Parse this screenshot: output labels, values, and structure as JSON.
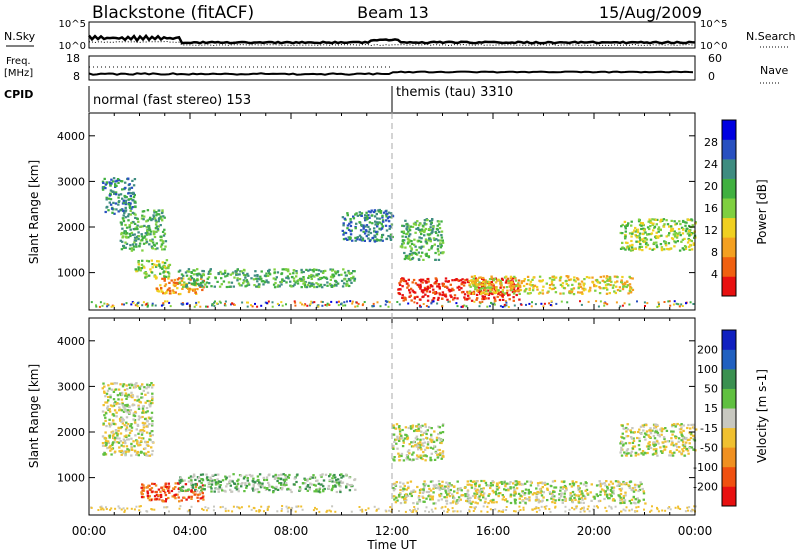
{
  "header": {
    "station": "Blackstone (fitACF)",
    "beam": "Beam 13",
    "date": "15/Aug/2009"
  },
  "top_panels": {
    "nsky_label": "N.Sky",
    "nsky_ticks": [
      "10^5",
      "10^0"
    ],
    "nsearch_label": "N.Search",
    "nsearch_ticks": [
      "10^5",
      "10^0"
    ],
    "freq_label": "Freq.",
    "freq_unit": "[MHz]",
    "freq_ticks": [
      "18",
      "8"
    ],
    "nave_label": "Nave",
    "nave_ticks": [
      "60",
      "0"
    ],
    "cpid_label": "CPID",
    "cpid_segments": [
      {
        "label": "normal (fast stereo) 153",
        "start_hour": 0
      },
      {
        "label": "themis (tau) 3310",
        "start_hour": 12
      }
    ]
  },
  "chart_data": [
    {
      "type": "heatmap",
      "title": "",
      "xlabel": "",
      "ylabel": "Slant Range [km]",
      "xlim_hours": [
        0,
        24
      ],
      "ylim": [
        180,
        4500
      ],
      "yticks": [
        "4000",
        "3000",
        "2000",
        "1000"
      ],
      "colorbar_label": "Power [dB]",
      "colorbar_ticks": [
        "28",
        "24",
        "20",
        "16",
        "12",
        "8",
        "4"
      ],
      "colors": [
        "#0000e0",
        "#2850c0",
        "#3e8c80",
        "#40b040",
        "#7fd040",
        "#f0d020",
        "#f4a020",
        "#f06010",
        "#e81010"
      ],
      "echo_regions": [
        {
          "t0": 0.5,
          "t1": 1.8,
          "r0": 2300,
          "r1": 3100,
          "level": 2
        },
        {
          "t0": 1.2,
          "t1": 3.0,
          "r0": 1500,
          "r1": 2400,
          "level": 3
        },
        {
          "t0": 1.8,
          "t1": 3.2,
          "r0": 900,
          "r1": 1300,
          "level": 4
        },
        {
          "t0": 2.6,
          "t1": 4.5,
          "r0": 550,
          "r1": 900,
          "level": 6
        },
        {
          "t0": 3.5,
          "t1": 10.5,
          "r0": 700,
          "r1": 1100,
          "level": 3
        },
        {
          "t0": 10.0,
          "t1": 12.0,
          "r0": 1700,
          "r1": 2400,
          "level": 2
        },
        {
          "t0": 12.3,
          "t1": 14.0,
          "r0": 1300,
          "r1": 2200,
          "level": 3
        },
        {
          "t0": 12.2,
          "t1": 17.0,
          "r0": 400,
          "r1": 900,
          "level": 8
        },
        {
          "t0": 15.0,
          "t1": 21.5,
          "r0": 550,
          "r1": 950,
          "level": 5
        },
        {
          "t0": 21.0,
          "t1": 24.0,
          "r0": 1500,
          "r1": 2200,
          "level": 4
        }
      ]
    },
    {
      "type": "heatmap",
      "title": "",
      "xlabel": "Time UT",
      "ylabel": "Slant Range [km]",
      "xlim_hours": [
        0,
        24
      ],
      "ylim": [
        180,
        4500
      ],
      "xticks": [
        "00:00",
        "04:00",
        "08:00",
        "12:00",
        "16:00",
        "20:00",
        "00:00"
      ],
      "yticks": [
        "4000",
        "3000",
        "2000",
        "1000"
      ],
      "colorbar_label": "Velocity [m s-1]",
      "colorbar_ticks": [
        "200",
        "100",
        "50",
        "15",
        "-15",
        "-50",
        "-100",
        "-200"
      ],
      "colors": [
        "#1020c0",
        "#2060c0",
        "#3a9050",
        "#60c040",
        "#c8c8c0",
        "#f0c030",
        "#f09020",
        "#f05010",
        "#e81010"
      ],
      "echo_regions": [
        {
          "t0": 0.5,
          "t1": 2.5,
          "r0": 1500,
          "r1": 3100,
          "level": 4
        },
        {
          "t0": 2.0,
          "t1": 4.5,
          "r0": 500,
          "r1": 900,
          "level": 7
        },
        {
          "t0": 3.5,
          "t1": 10.5,
          "r0": 700,
          "r1": 1100,
          "level": 3
        },
        {
          "t0": 12.0,
          "t1": 22.0,
          "r0": 450,
          "r1": 950,
          "level": 4
        },
        {
          "t0": 12.0,
          "t1": 14.0,
          "r0": 1400,
          "r1": 2200,
          "level": 4
        },
        {
          "t0": 21.0,
          "t1": 24.0,
          "r0": 1500,
          "r1": 2200,
          "level": 4
        }
      ]
    }
  ]
}
